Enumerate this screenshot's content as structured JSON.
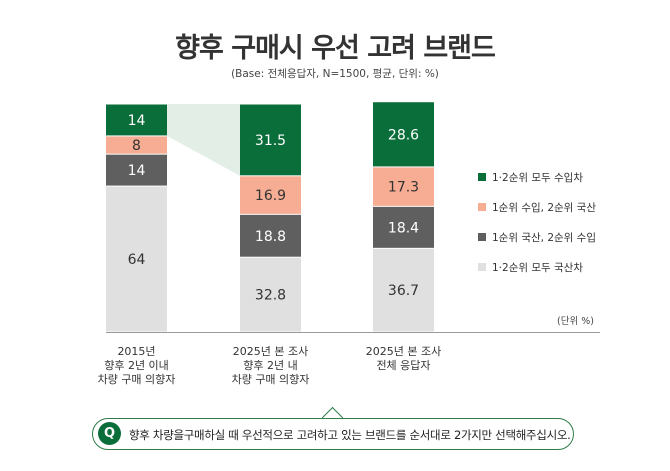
{
  "chart_data": {
    "type": "bar",
    "stacked": true,
    "title": "향후 구매시 우선 고려 브랜드",
    "subtitle": "(Base: 전체응답자, N=1500, 평균, 단위: %)",
    "unit_note": "(단위 %)",
    "categories": [
      [
        "2015년",
        "향후 2년 이내",
        "차량 구매 의향자"
      ],
      [
        "2025년 본 조사",
        "향후 2년 내",
        "차량 구매 의향자"
      ],
      [
        "2025년 본 조사",
        "전체 응답자"
      ]
    ],
    "series": [
      {
        "name": "1·2순위 모두 국산차",
        "color": "#e0e0e0",
        "text_color": "#333333",
        "values": [
          64,
          32.8,
          36.7
        ]
      },
      {
        "name": "1순위 국산, 2순위 수입",
        "color": "#5f5f5f",
        "text_color": "#ffffff",
        "values": [
          14,
          18.8,
          18.4
        ]
      },
      {
        "name": "1순위 수입, 2순위 국산",
        "color": "#f6ad93",
        "text_color": "#333333",
        "values": [
          8,
          16.9,
          17.3
        ]
      },
      {
        "name": "1·2순위 모두 수입차",
        "color": "#0a6e3a",
        "text_color": "#ffffff",
        "values": [
          14,
          31.5,
          28.6
        ]
      }
    ],
    "legend_order": [
      3,
      2,
      1,
      0
    ],
    "legend_position": "right",
    "ylim": [
      0,
      100
    ],
    "highlight_connector": {
      "from_category": 0,
      "to_category": 1,
      "series": "1·2순위 모두 수입차",
      "color": "#e3efe6"
    }
  },
  "question": {
    "icon_label": "Q",
    "text": "향후 차량을구매하실 때 우선적으로 고려하고 있는 브랜드를 순서대로 2가지만 선택해주십시오."
  }
}
